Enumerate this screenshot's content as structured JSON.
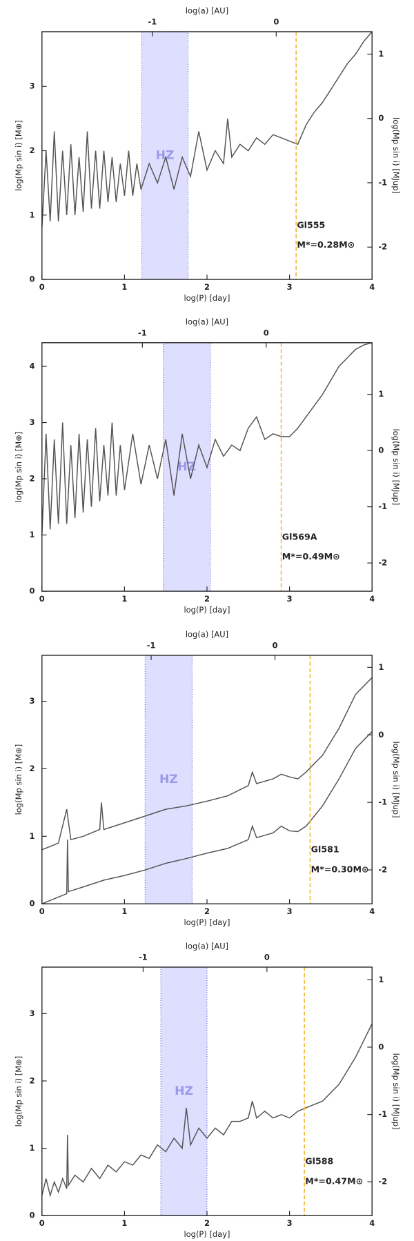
{
  "chart_data": [
    {
      "type": "line",
      "xlabel": "log(P) [day]",
      "ylabel": "log(Mp sin i) [M⊕]",
      "y2label": "log(Mp sin i) [MJup]",
      "x2label": "log(a) [AU]",
      "xlim": [
        0,
        4
      ],
      "xticks": [
        0,
        1,
        2,
        3,
        4
      ],
      "ylim": [
        0,
        3.85
      ],
      "yticks": [
        0,
        1,
        2,
        3
      ],
      "y2lim": [
        -2.502,
        1.348
      ],
      "y2ticks": [
        -2,
        -1,
        0,
        1
      ],
      "x2lim": [
        -1.892,
        0.774
      ],
      "x2ticks": [
        -1,
        0
      ],
      "hz": {
        "range": [
          1.21,
          1.77
        ],
        "label": "HZ",
        "color": "#c8c8ff"
      },
      "vline": {
        "x": 3.08,
        "color": "#f5b942"
      },
      "annotations": [
        "Gl555",
        "M*=0.28M⊙"
      ],
      "series": [
        {
          "color": "#555555",
          "x": [
            0,
            0.05,
            0.1,
            0.15,
            0.2,
            0.25,
            0.3,
            0.35,
            0.4,
            0.45,
            0.5,
            0.55,
            0.6,
            0.65,
            0.7,
            0.75,
            0.8,
            0.85,
            0.9,
            0.95,
            1.0,
            1.05,
            1.1,
            1.15,
            1.2,
            1.3,
            1.4,
            1.5,
            1.6,
            1.7,
            1.8,
            1.9,
            2.0,
            2.1,
            2.2,
            2.25,
            2.3,
            2.4,
            2.5,
            2.6,
            2.7,
            2.8,
            2.9,
            3.0,
            3.1,
            3.2,
            3.3,
            3.4,
            3.5,
            3.6,
            3.7,
            3.8,
            3.9,
            4.0
          ],
          "values": [
            0.8,
            2.0,
            0.9,
            2.3,
            0.9,
            2.0,
            1.0,
            2.1,
            1.0,
            1.9,
            1.05,
            2.3,
            1.1,
            2.0,
            1.1,
            2.0,
            1.2,
            1.9,
            1.2,
            1.8,
            1.3,
            2.0,
            1.3,
            1.8,
            1.4,
            1.8,
            1.5,
            1.9,
            1.4,
            1.9,
            1.6,
            2.3,
            1.7,
            2.0,
            1.8,
            2.5,
            1.9,
            2.1,
            2.0,
            2.2,
            2.1,
            2.25,
            2.2,
            2.15,
            2.1,
            2.4,
            2.6,
            2.75,
            2.95,
            3.15,
            3.35,
            3.5,
            3.7,
            3.85
          ]
        }
      ]
    },
    {
      "type": "line",
      "xlabel": "log(P) [day]",
      "ylabel": "log(Mp sin i) [M⊕]",
      "y2label": "log(Mp sin i) [MJup]",
      "x2label": "log(a) [AU]",
      "xlim": [
        0,
        4
      ],
      "xticks": [
        0,
        1,
        2,
        3,
        4
      ],
      "ylim": [
        0,
        4.42
      ],
      "yticks": [
        0,
        1,
        2,
        3,
        4
      ],
      "y2lim": [
        -2.502,
        1.918
      ],
      "y2ticks": [
        -2,
        -1,
        0,
        1
      ],
      "x2lim": [
        -1.811,
        0.855
      ],
      "x2ticks": [
        -1,
        0
      ],
      "hz": {
        "range": [
          1.47,
          2.04
        ],
        "label": "HZ",
        "color": "#c8c8ff"
      },
      "vline": {
        "x": 2.9,
        "color": "#f5b942"
      },
      "annotations": [
        "Gl569A",
        "M*=0.49M⊙"
      ],
      "series": [
        {
          "color": "#555555",
          "x": [
            0,
            0.05,
            0.1,
            0.15,
            0.2,
            0.25,
            0.3,
            0.35,
            0.4,
            0.45,
            0.5,
            0.55,
            0.6,
            0.65,
            0.7,
            0.75,
            0.8,
            0.85,
            0.9,
            0.95,
            1.0,
            1.1,
            1.2,
            1.3,
            1.4,
            1.5,
            1.6,
            1.7,
            1.8,
            1.9,
            2.0,
            2.1,
            2.2,
            2.3,
            2.4,
            2.5,
            2.6,
            2.7,
            2.8,
            2.9,
            3.0,
            3.1,
            3.2,
            3.3,
            3.4,
            3.5,
            3.6,
            3.7,
            3.8,
            3.9,
            4.0
          ],
          "values": [
            1.0,
            2.8,
            1.1,
            2.7,
            1.2,
            3.0,
            1.2,
            2.6,
            1.3,
            2.8,
            1.4,
            2.7,
            1.5,
            2.9,
            1.6,
            2.6,
            1.7,
            3.0,
            1.7,
            2.6,
            1.8,
            2.8,
            1.9,
            2.6,
            2.0,
            2.7,
            1.7,
            2.8,
            2.0,
            2.6,
            2.2,
            2.7,
            2.4,
            2.6,
            2.5,
            2.9,
            3.1,
            2.7,
            2.8,
            2.75,
            2.75,
            2.9,
            3.1,
            3.3,
            3.5,
            3.75,
            4.0,
            4.15,
            4.3,
            4.38,
            4.42
          ]
        }
      ]
    },
    {
      "type": "line",
      "xlabel": "log(P) [day]",
      "ylabel": "log(Mp sin i) [M⊕]",
      "y2label": "log(Mp sin i) [MJup]",
      "x2label": "log(a) [AU]",
      "xlim": [
        0,
        4
      ],
      "xticks": [
        0,
        1,
        2,
        3,
        4
      ],
      "ylim": [
        0,
        3.68
      ],
      "yticks": [
        0,
        1,
        2,
        3
      ],
      "y2lim": [
        -2.502,
        1.178
      ],
      "y2ticks": [
        -2,
        -1,
        0,
        1
      ],
      "x2lim": [
        -1.882,
        0.784
      ],
      "x2ticks": [
        -1,
        0
      ],
      "hz": {
        "range": [
          1.25,
          1.82
        ],
        "label": "HZ",
        "color": "#c8c8ff"
      },
      "vline": {
        "x": 3.25,
        "color": "#f5b942"
      },
      "annotations": [
        "Gl581",
        "M*=0.30M⊙"
      ],
      "series": [
        {
          "color": "#555555",
          "x": [
            0,
            0.1,
            0.2,
            0.3,
            0.35,
            0.5,
            0.7,
            0.72,
            0.75,
            1.0,
            1.25,
            1.5,
            1.75,
            2.0,
            2.25,
            2.5,
            2.55,
            2.6,
            2.8,
            2.9,
            3.0,
            3.1,
            3.2,
            3.4,
            3.6,
            3.8,
            4.0
          ],
          "values": [
            0.8,
            0.85,
            0.9,
            1.4,
            0.95,
            1.0,
            1.1,
            1.5,
            1.1,
            1.2,
            1.3,
            1.4,
            1.45,
            1.52,
            1.6,
            1.75,
            1.95,
            1.78,
            1.85,
            1.92,
            1.88,
            1.85,
            1.95,
            2.2,
            2.6,
            3.1,
            3.35
          ]
        },
        {
          "color": "#555555",
          "x": [
            0,
            0.2,
            0.3,
            0.31,
            0.32,
            0.5,
            0.75,
            1.0,
            1.25,
            1.5,
            1.75,
            2.0,
            2.25,
            2.5,
            2.55,
            2.6,
            2.8,
            2.9,
            3.0,
            3.1,
            3.2,
            3.4,
            3.6,
            3.8,
            4.0
          ],
          "values": [
            0.0,
            0.1,
            0.15,
            0.95,
            0.18,
            0.25,
            0.35,
            0.42,
            0.5,
            0.6,
            0.67,
            0.75,
            0.82,
            0.95,
            1.15,
            0.98,
            1.05,
            1.15,
            1.08,
            1.07,
            1.15,
            1.45,
            1.85,
            2.3,
            2.55
          ]
        }
      ]
    },
    {
      "type": "line",
      "xlabel": "log(P) [day]",
      "ylabel": "log(Mp sin i) [M⊕]",
      "y2label": "log(Mp sin i) [MJup]",
      "x2label": "log(a) [AU]",
      "xlim": [
        0,
        4
      ],
      "xticks": [
        0,
        1,
        2,
        3,
        4
      ],
      "ylim": [
        0,
        3.69
      ],
      "yticks": [
        0,
        1,
        2,
        3
      ],
      "y2lim": [
        -2.502,
        1.188
      ],
      "y2ticks": [
        -2,
        -1,
        0,
        1
      ],
      "x2lim": [
        -1.817,
        0.849
      ],
      "x2ticks": [
        -1,
        0
      ],
      "hz": {
        "range": [
          1.44,
          2.0
        ],
        "label": "HZ",
        "color": "#c8c8ff"
      },
      "vline": {
        "x": 3.18,
        "color": "#f5b942"
      },
      "annotations": [
        "Gl588",
        "M*=0.47M⊙"
      ],
      "series": [
        {
          "color": "#555555",
          "x": [
            0,
            0.05,
            0.1,
            0.15,
            0.2,
            0.25,
            0.3,
            0.31,
            0.32,
            0.4,
            0.5,
            0.6,
            0.7,
            0.8,
            0.9,
            1.0,
            1.1,
            1.2,
            1.3,
            1.4,
            1.5,
            1.6,
            1.7,
            1.75,
            1.8,
            1.9,
            2.0,
            2.1,
            2.2,
            2.3,
            2.4,
            2.5,
            2.55,
            2.6,
            2.7,
            2.8,
            2.9,
            3.0,
            3.1,
            3.2,
            3.4,
            3.6,
            3.8,
            4.0
          ],
          "values": [
            0.3,
            0.55,
            0.3,
            0.5,
            0.35,
            0.55,
            0.4,
            1.2,
            0.45,
            0.6,
            0.5,
            0.7,
            0.55,
            0.75,
            0.65,
            0.8,
            0.75,
            0.9,
            0.85,
            1.05,
            0.95,
            1.15,
            1.0,
            1.6,
            1.05,
            1.3,
            1.15,
            1.3,
            1.2,
            1.4,
            1.4,
            1.45,
            1.7,
            1.45,
            1.55,
            1.45,
            1.5,
            1.45,
            1.55,
            1.6,
            1.7,
            1.95,
            2.35,
            2.85
          ]
        }
      ]
    }
  ]
}
